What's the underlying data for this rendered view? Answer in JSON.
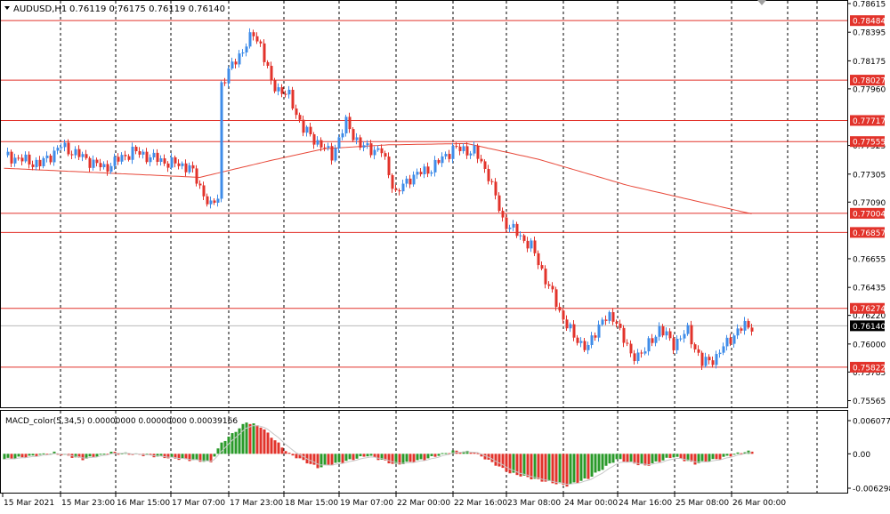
{
  "header": {
    "symbol": "AUDUSD,H1",
    "ohlc": "0.76119 0.76175 0.76119 0.76140"
  },
  "indicator": {
    "label": "MACD_color(5,34,5) 0.00000000 0.00000000 0.00039166",
    "axis_ticks": [
      {
        "label": "0.0060772",
        "value": 0.0060772
      },
      {
        "label": "0.00",
        "value": 0
      },
      {
        "label": "-0.006298",
        "value": -0.006298
      }
    ]
  },
  "colors": {
    "bull": "#3f8ce8",
    "bear": "#e2332b",
    "ma": "#e8493a",
    "hline": "#e2332b",
    "macd_pos": "#2a9a2a",
    "macd_neg": "#e2332b",
    "signal": "#c8c8c8",
    "grid": "#000000",
    "price_line": "#b8b8b8"
  },
  "chart_data": {
    "type": "candlestick",
    "timeframe": "H1",
    "ylim": [
      0.75555,
      0.78615
    ],
    "y_ticks": [
      {
        "label": "0.78615",
        "value": 0.78615
      },
      {
        "label": "0.78395",
        "value": 0.78395
      },
      {
        "label": "0.78175",
        "value": 0.78175
      },
      {
        "label": "0.77960",
        "value": 0.7796
      },
      {
        "label": "0.77525",
        "value": 0.77525
      },
      {
        "label": "0.77305",
        "value": 0.77305
      },
      {
        "label": "0.77090",
        "value": 0.7709
      },
      {
        "label": "0.76655",
        "value": 0.76655
      },
      {
        "label": "0.76435",
        "value": 0.76435
      },
      {
        "label": "0.76220",
        "value": 0.7622
      },
      {
        "label": "0.76000",
        "value": 0.76
      },
      {
        "label": "0.75785",
        "value": 0.75785
      },
      {
        "label": "0.75565",
        "value": 0.75565
      }
    ],
    "x_ticks": [
      "15 Mar 2021",
      "15 Mar 23:00",
      "16 Mar 15:00",
      "17 Mar 07:00",
      "17 Mar 23:00",
      "18 Mar 15:00",
      "19 Mar 07:00",
      "22 Mar 00:00",
      "22 Mar 16:00",
      "23 Mar 08:00",
      "24 Mar 00:00",
      "24 Mar 16:00",
      "25 Mar 08:00",
      "26 Mar 00:00"
    ],
    "horizontal_levels": [
      {
        "label": "0.78484",
        "value": 0.78484
      },
      {
        "label": "0.78027",
        "value": 0.78027
      },
      {
        "label": "0.77717",
        "value": 0.77717
      },
      {
        "label": "0.77555",
        "value": 0.77555
      },
      {
        "label": "0.77004",
        "value": 0.77004
      },
      {
        "label": "0.76857",
        "value": 0.76857
      },
      {
        "label": "0.76274",
        "value": 0.76274
      },
      {
        "label": "0.75822",
        "value": 0.75822
      }
    ],
    "current_price": {
      "label": "0.76140",
      "value": 0.7614
    },
    "moving_average_anchors": [
      {
        "bar": 0,
        "value": 0.7735
      },
      {
        "bar": 55,
        "value": 0.7728
      },
      {
        "bar": 75,
        "value": 0.7741
      },
      {
        "bar": 90,
        "value": 0.775
      },
      {
        "bar": 108,
        "value": 0.7753
      },
      {
        "bar": 130,
        "value": 0.7754
      },
      {
        "bar": 150,
        "value": 0.7742
      },
      {
        "bar": 175,
        "value": 0.7722
      },
      {
        "bar": 210,
        "value": 0.77
      }
    ],
    "price_anchors": [
      {
        "bar": 0,
        "value": 0.7745
      },
      {
        "bar": 10,
        "value": 0.7738
      },
      {
        "bar": 16,
        "value": 0.7752
      },
      {
        "bar": 28,
        "value": 0.7735
      },
      {
        "bar": 36,
        "value": 0.7748
      },
      {
        "bar": 45,
        "value": 0.774
      },
      {
        "bar": 52,
        "value": 0.7736
      },
      {
        "bar": 58,
        "value": 0.7705
      },
      {
        "bar": 60,
        "value": 0.7713
      },
      {
        "bar": 61,
        "value": 0.78
      },
      {
        "bar": 65,
        "value": 0.7818
      },
      {
        "bar": 70,
        "value": 0.7838
      },
      {
        "bar": 72,
        "value": 0.783
      },
      {
        "bar": 75,
        "value": 0.78
      },
      {
        "bar": 80,
        "value": 0.779
      },
      {
        "bar": 84,
        "value": 0.7765
      },
      {
        "bar": 88,
        "value": 0.7755
      },
      {
        "bar": 92,
        "value": 0.7745
      },
      {
        "bar": 96,
        "value": 0.777
      },
      {
        "bar": 100,
        "value": 0.7752
      },
      {
        "bar": 106,
        "value": 0.7748
      },
      {
        "bar": 110,
        "value": 0.7715
      },
      {
        "bar": 114,
        "value": 0.7728
      },
      {
        "bar": 120,
        "value": 0.7735
      },
      {
        "bar": 126,
        "value": 0.775
      },
      {
        "bar": 132,
        "value": 0.7748
      },
      {
        "bar": 136,
        "value": 0.773
      },
      {
        "bar": 140,
        "value": 0.7695
      },
      {
        "bar": 144,
        "value": 0.7685
      },
      {
        "bar": 148,
        "value": 0.7675
      },
      {
        "bar": 152,
        "value": 0.765
      },
      {
        "bar": 156,
        "value": 0.7625
      },
      {
        "bar": 160,
        "value": 0.7605
      },
      {
        "bar": 164,
        "value": 0.7597
      },
      {
        "bar": 168,
        "value": 0.762
      },
      {
        "bar": 172,
        "value": 0.7618
      },
      {
        "bar": 176,
        "value": 0.759
      },
      {
        "bar": 180,
        "value": 0.7595
      },
      {
        "bar": 184,
        "value": 0.7612
      },
      {
        "bar": 188,
        "value": 0.76
      },
      {
        "bar": 192,
        "value": 0.761
      },
      {
        "bar": 196,
        "value": 0.7585
      },
      {
        "bar": 200,
        "value": 0.759
      },
      {
        "bar": 204,
        "value": 0.7605
      },
      {
        "bar": 208,
        "value": 0.7614
      }
    ],
    "macd_anchors": [
      {
        "bar": 0,
        "value": -0.001
      },
      {
        "bar": 8,
        "value": -0.0004
      },
      {
        "bar": 14,
        "value": 0.0002
      },
      {
        "bar": 22,
        "value": -0.001
      },
      {
        "bar": 30,
        "value": 0.0003
      },
      {
        "bar": 40,
        "value": -0.0003
      },
      {
        "bar": 50,
        "value": -0.001
      },
      {
        "bar": 58,
        "value": -0.0015
      },
      {
        "bar": 61,
        "value": 0.002
      },
      {
        "bar": 68,
        "value": 0.0058
      },
      {
        "bar": 72,
        "value": 0.005
      },
      {
        "bar": 80,
        "value": 0.0
      },
      {
        "bar": 88,
        "value": -0.0025
      },
      {
        "bar": 95,
        "value": -0.0015
      },
      {
        "bar": 102,
        "value": -0.0003
      },
      {
        "bar": 110,
        "value": -0.002
      },
      {
        "bar": 118,
        "value": -0.001
      },
      {
        "bar": 126,
        "value": 0.0005
      },
      {
        "bar": 132,
        "value": 0.0003
      },
      {
        "bar": 142,
        "value": -0.0035
      },
      {
        "bar": 150,
        "value": -0.0048
      },
      {
        "bar": 158,
        "value": -0.0058
      },
      {
        "bar": 164,
        "value": -0.0045
      },
      {
        "bar": 172,
        "value": -0.001
      },
      {
        "bar": 180,
        "value": -0.0022
      },
      {
        "bar": 188,
        "value": -0.0005
      },
      {
        "bar": 194,
        "value": -0.0018
      },
      {
        "bar": 200,
        "value": -0.001
      },
      {
        "bar": 208,
        "value": 0.0004
      }
    ]
  }
}
